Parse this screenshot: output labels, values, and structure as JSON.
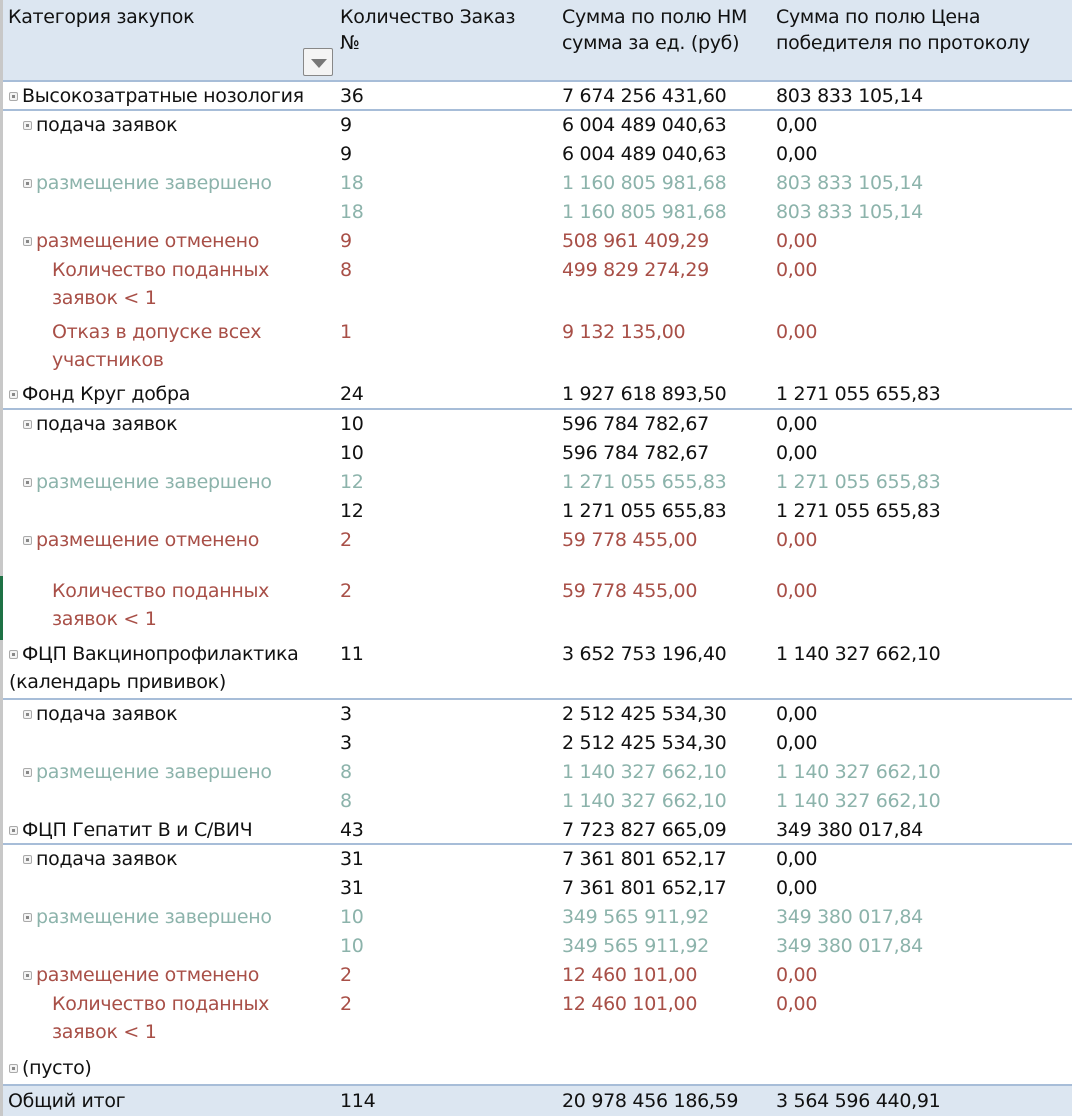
{
  "header": {
    "category": "Категория закупок",
    "count": "Количество Заказ №",
    "nm_sum": "Сумма по полю НМ сумма за ед. (руб)",
    "winner_sum": "Сумма по полю Цена победителя по протоколу",
    "filter_icon": "dropdown-filter-icon"
  },
  "colors": {
    "header_bg": "#dce6f1",
    "completed": "#8cb3ab",
    "cancelled": "#a84f47"
  },
  "rows": [
    {
      "label": "Высокозатратные нозология",
      "level": 0,
      "style": "",
      "count": "36",
      "nm": "7 674 256 431,60",
      "winner": "803 833 105,14"
    },
    {
      "label": "подача заявок",
      "level": 1,
      "style": "",
      "count": "9",
      "nm": "6 004 489 040,63",
      "winner": "0,00"
    },
    {
      "label": "",
      "level": 2,
      "style": "",
      "count": "9",
      "nm": "6 004 489 040,63",
      "winner": "0,00"
    },
    {
      "label": "размещение завершено",
      "level": 1,
      "style": "green",
      "count": "18",
      "nm": "1 160 805 981,68",
      "winner": "803 833 105,14"
    },
    {
      "label": "",
      "level": 2,
      "style": "green",
      "count": "18",
      "nm": "1 160 805 981,68",
      "winner": "803 833 105,14"
    },
    {
      "label": "размещение отменено",
      "level": 1,
      "style": "red",
      "count": "9",
      "nm": "508 961 409,29",
      "winner": "0,00"
    },
    {
      "label": "Количество поданных заявок < 1",
      "level": 2,
      "style": "red",
      "count": "8",
      "nm": "499 829 274,29",
      "winner": "0,00"
    },
    {
      "label": "Отказ в допуске всех участников",
      "level": 2,
      "style": "red",
      "count": "1",
      "nm": "9 132 135,00",
      "winner": "0,00"
    },
    {
      "label": "Фонд Круг добра",
      "level": 0,
      "style": "",
      "count": "24",
      "nm": "1 927 618 893,50",
      "winner": "1 271 055 655,83"
    },
    {
      "label": "подача заявок",
      "level": 1,
      "style": "",
      "count": "10",
      "nm": "596 784 782,67",
      "winner": "0,00"
    },
    {
      "label": "",
      "level": 2,
      "style": "",
      "count": "10",
      "nm": "596 784 782,67",
      "winner": "0,00"
    },
    {
      "label": "размещение завершено",
      "level": 1,
      "style": "green",
      "count": "12",
      "nm": "1 271 055 655,83",
      "winner": "1 271 055 655,83"
    },
    {
      "label": "",
      "level": 2,
      "style": "",
      "count": "12",
      "nm": "1 271 055 655,83",
      "winner": "1 271 055 655,83"
    },
    {
      "label": "размещение отменено",
      "level": 1,
      "style": "red",
      "count": "2",
      "nm": "59 778 455,00",
      "winner": "0,00"
    },
    {
      "label": "Количество поданных заявок < 1",
      "level": 2,
      "style": "red",
      "count": "2",
      "nm": "59 778 455,00",
      "winner": "0,00"
    },
    {
      "label": "ФЦП Вакцинопрофилактика (календарь прививок)",
      "level": 0,
      "style": "",
      "count": "11",
      "nm": "3 652 753 196,40",
      "winner": "1 140 327 662,10"
    },
    {
      "label": "подача заявок",
      "level": 1,
      "style": "",
      "count": "3",
      "nm": "2 512 425 534,30",
      "winner": "0,00"
    },
    {
      "label": "",
      "level": 2,
      "style": "",
      "count": "3",
      "nm": "2 512 425 534,30",
      "winner": "0,00"
    },
    {
      "label": "размещение завершено",
      "level": 1,
      "style": "green",
      "count": "8",
      "nm": "1 140 327 662,10",
      "winner": "1 140 327 662,10"
    },
    {
      "label": "",
      "level": 2,
      "style": "green",
      "count": "8",
      "nm": "1 140 327 662,10",
      "winner": "1 140 327 662,10"
    },
    {
      "label": "ФЦП Гепатит В и С/ВИЧ",
      "level": 0,
      "style": "",
      "count": "43",
      "nm": "7 723 827 665,09",
      "winner": "349 380 017,84"
    },
    {
      "label": "подача заявок",
      "level": 1,
      "style": "",
      "count": "31",
      "nm": "7 361 801 652,17",
      "winner": "0,00"
    },
    {
      "label": "",
      "level": 2,
      "style": "",
      "count": "31",
      "nm": "7 361 801 652,17",
      "winner": "0,00"
    },
    {
      "label": "размещение завершено",
      "level": 1,
      "style": "green",
      "count": "10",
      "nm": "349 565 911,92",
      "winner": "349 380 017,84"
    },
    {
      "label": "",
      "level": 2,
      "style": "green",
      "count": "10",
      "nm": "349 565 911,92",
      "winner": "349 380 017,84"
    },
    {
      "label": "размещение отменено",
      "level": 1,
      "style": "red",
      "count": "2",
      "nm": "12 460 101,00",
      "winner": "0,00"
    },
    {
      "label": "Количество поданных заявок < 1",
      "level": 2,
      "style": "red",
      "count": "2",
      "nm": "12 460 101,00",
      "winner": "0,00"
    },
    {
      "label": "(пусто)",
      "level": 0,
      "style": "",
      "count": "",
      "nm": "",
      "winner": ""
    }
  ],
  "total": {
    "label": "Общий итог",
    "count": "114",
    "nm": "20 978 456 186,59",
    "winner": "3 564 596 440,91"
  }
}
